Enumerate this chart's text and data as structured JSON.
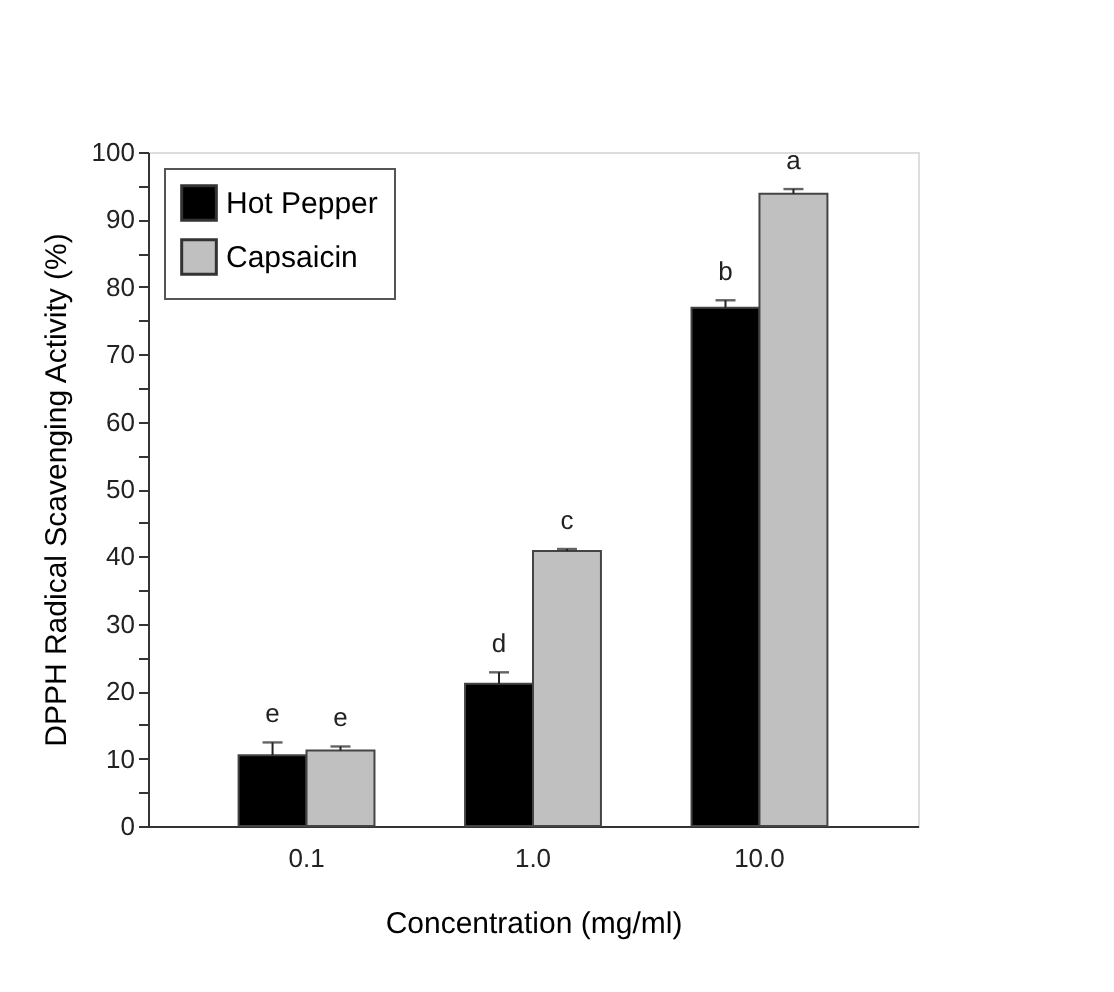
{
  "chart_data": {
    "type": "bar",
    "xlabel": "Concentration (mg/ml)",
    "ylabel": "DPPH Radical Scavenging Activity (%)",
    "categories": [
      "0.1",
      "1.0",
      "10.0"
    ],
    "series": [
      {
        "name": "Hot Pepper",
        "color": "#000000",
        "values": [
          10.5,
          21.1,
          76.9
        ],
        "errors": [
          [
            10.5,
            12.4
          ],
          [
            21.1,
            22.8
          ],
          [
            76.9,
            78.0
          ]
        ]
      },
      {
        "name": "Capsaicin",
        "color": "#c0c0c0",
        "values": [
          11.2,
          40.8,
          93.8
        ],
        "errors": [
          [
            11.2,
            11.8
          ],
          [
            40.8,
            41.1
          ],
          [
            93.8,
            94.5
          ]
        ]
      }
    ],
    "ylim": [
      0,
      100
    ],
    "yticks": [
      0,
      {
        "value": 5,
        "label": null
      },
      10,
      {
        "value": 15,
        "label": null
      },
      20,
      {
        "value": 25,
        "label": null
      },
      30,
      {
        "value": 35,
        "label": null
      },
      40,
      {
        "value": 45,
        "label": null
      },
      50,
      {
        "value": 55,
        "label": null
      },
      60,
      {
        "value": 65,
        "label": null
      },
      70,
      {
        "value": 75,
        "label": null
      },
      80,
      {
        "value": 85,
        "label": null
      },
      90,
      {
        "value": 95,
        "label": null
      },
      100
    ],
    "annotations": [
      {
        "text": "e",
        "x": "0.1",
        "y": 12.4
      },
      {
        "text": "e",
        "x": "0.1",
        "y": 11.8
      },
      {
        "text": "d",
        "x": "1.0",
        "y": 22.8
      },
      {
        "text": "c",
        "x": "1.0",
        "y": 41.1
      },
      {
        "text": "b",
        "x": "10.0",
        "y": 78.0
      },
      {
        "text": "a",
        "x": "10.0",
        "y": 94.5
      }
    ],
    "grid": false,
    "legend": "top left"
  }
}
